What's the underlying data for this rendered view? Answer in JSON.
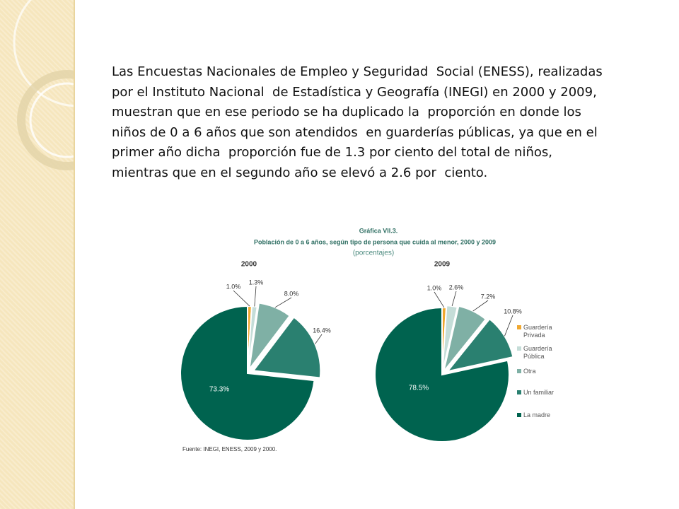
{
  "slide": {
    "paragraph": [
      "Las Encuestas Nacionales de Empleo y Seguridad  Social (ENESS), realizadas",
      "por el Instituto Nacional  de Estadística y Geografía (INEGI) en 2000 y 2009,",
      "muestran que en ese periodo se ha duplicado la  proporción en donde los",
      "niños de 0 a 6 años que son atendidos  en guarderías públicas, ya que en el",
      "primer año dicha  proporción fue de 1.3 por ciento del total de niños,",
      "mientras que en el segundo año se elevó a 2.6 por  ciento."
    ]
  },
  "figure": {
    "title": "Gráfica VII.3.",
    "subtitle": "Población de 0 a 6 años, según tipo de persona que cuida al menor, 2000 y 2009",
    "unit": "(porcentajes)",
    "source": "Fuente: INEGI, ENESS, 2009 y 2000."
  },
  "chart_data": [
    {
      "type": "pie",
      "title": "2000",
      "categories": [
        "Guardería Privada",
        "Guardería Pública",
        "Otra",
        "Un familiar",
        "La madre"
      ],
      "values": [
        1.0,
        1.3,
        8.0,
        16.4,
        73.3
      ],
      "value_labels": [
        "1.0%",
        "1.3%",
        "8.0%",
        "16.4%",
        "73.3%"
      ],
      "colors": [
        "#f0a830",
        "#c5ddd8",
        "#7fb0a5",
        "#2a8070",
        "#00634f"
      ]
    },
    {
      "type": "pie",
      "title": "2009",
      "categories": [
        "Guardería Privada",
        "Guardería Pública",
        "Otra",
        "Un familiar",
        "La madre"
      ],
      "values": [
        1.0,
        2.6,
        7.2,
        10.8,
        78.5
      ],
      "value_labels": [
        "1.0%",
        "2.6%",
        "7.2%",
        "10.8%",
        "78.5%"
      ],
      "colors": [
        "#f0a830",
        "#c5ddd8",
        "#7fb0a5",
        "#2a8070",
        "#00634f"
      ]
    }
  ]
}
